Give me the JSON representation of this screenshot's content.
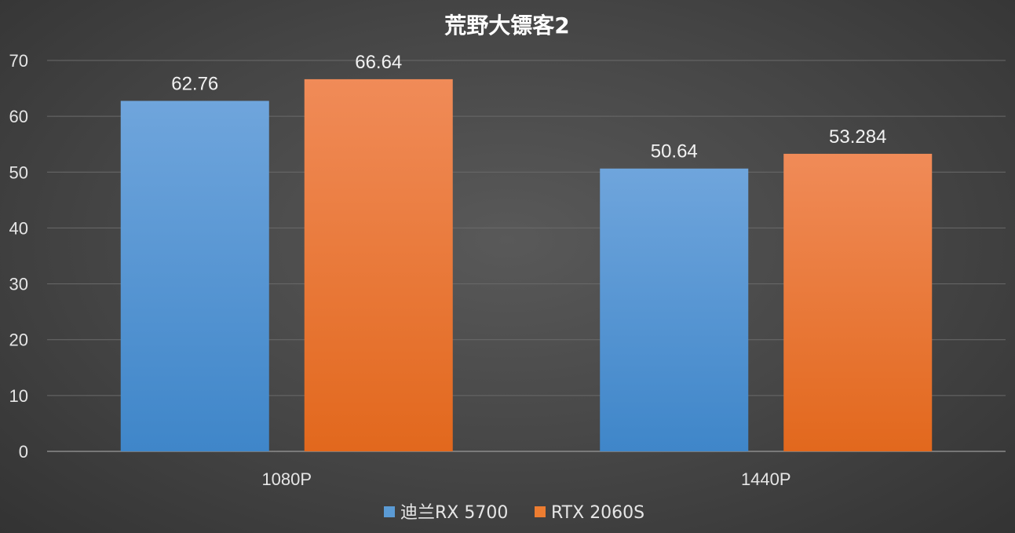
{
  "chart_data": {
    "type": "bar",
    "title": "荒野大镖客2",
    "categories": [
      "1080P",
      "1440P"
    ],
    "series": [
      {
        "name": "迪兰RX 5700",
        "values": [
          62.76,
          50.64
        ],
        "labels": [
          "62.76",
          "50.64"
        ],
        "color": "#5b9bd5"
      },
      {
        "name": "RTX 2060S",
        "values": [
          66.64,
          53.284
        ],
        "labels": [
          "66.64",
          "53.284"
        ],
        "color": "#ed7d31"
      }
    ],
    "yticks": [
      "0",
      "10",
      "20",
      "30",
      "40",
      "50",
      "60",
      "70"
    ],
    "ylim": [
      0,
      70
    ],
    "grid": true,
    "legend": "bottom"
  }
}
